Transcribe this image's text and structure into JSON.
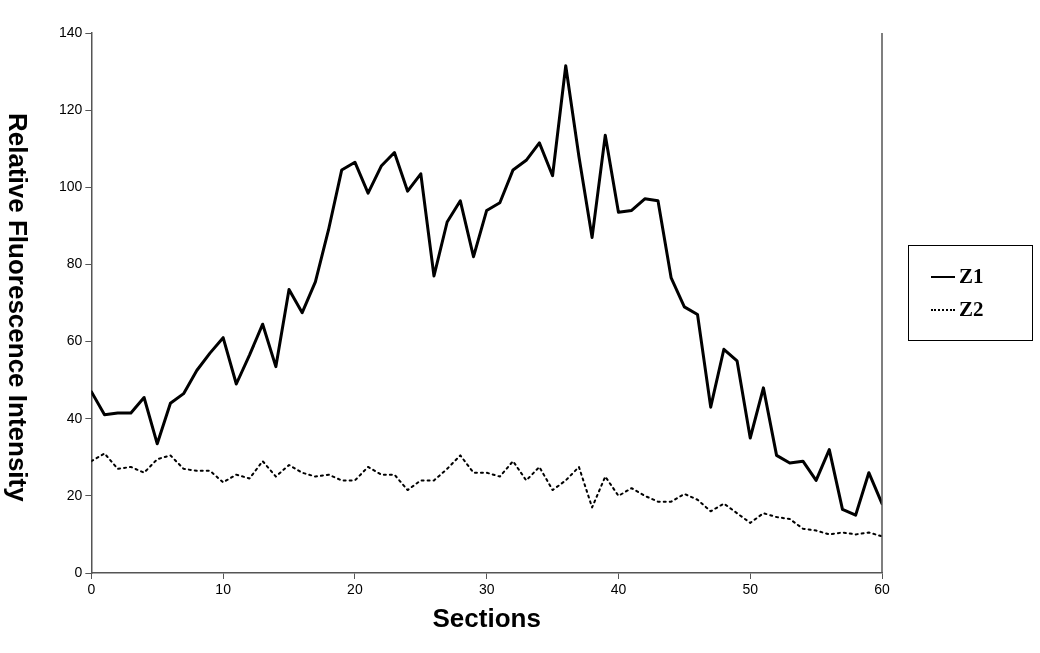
{
  "chart_data": {
    "type": "line",
    "xlabel": "Sections",
    "ylabel": "Relative Fluorescence Intensity",
    "x": [
      0,
      1,
      2,
      3,
      4,
      5,
      6,
      7,
      8,
      9,
      10,
      11,
      12,
      13,
      14,
      15,
      16,
      17,
      18,
      19,
      20,
      21,
      22,
      23,
      24,
      25,
      26,
      27,
      28,
      29,
      30,
      31,
      32,
      33,
      34,
      35,
      36,
      37,
      38,
      39,
      40,
      41,
      42,
      43,
      44,
      45,
      46,
      47,
      48,
      49,
      50,
      51,
      52,
      53,
      54,
      55,
      56,
      57,
      58,
      59,
      60
    ],
    "series": [
      {
        "name": "Z1",
        "color": "#000000",
        "line_style": "solid",
        "values": [
          47,
          41,
          41.5,
          41.5,
          45.5,
          33.5,
          44,
          46.5,
          52.5,
          57,
          61,
          49,
          56.5,
          64.5,
          53.5,
          73.5,
          67.5,
          75.5,
          89,
          104.5,
          106.5,
          98.5,
          105.5,
          109,
          99,
          103.5,
          77,
          91,
          96.5,
          82,
          94,
          96,
          104.5,
          107,
          111.5,
          103,
          131.5,
          108,
          87,
          113.5,
          93.5,
          94,
          97,
          96.5,
          76.5,
          69,
          67,
          43,
          58,
          55,
          35,
          48,
          30.5,
          28.5,
          29,
          24,
          32,
          16.5,
          15,
          26,
          18
        ]
      },
      {
        "name": "Z2",
        "color": "#000000",
        "line_style": "dotted",
        "values": [
          29,
          31,
          27,
          27.5,
          26,
          29.5,
          30.5,
          27,
          26.5,
          26.5,
          23.5,
          25.5,
          24.5,
          29,
          25,
          28,
          26,
          25,
          25.5,
          24,
          24,
          27.5,
          25.5,
          25.5,
          21.5,
          24,
          24,
          27,
          30.5,
          26,
          26,
          25,
          29,
          24,
          27.5,
          21.5,
          24,
          27.5,
          17,
          25,
          20,
          22,
          20,
          18.5,
          18.5,
          20.5,
          19,
          16,
          18,
          15.5,
          13,
          15.5,
          14.5,
          14,
          11.5,
          11,
          10,
          10.5,
          10,
          10.5,
          9.5
        ]
      }
    ],
    "xlim": [
      0,
      60
    ],
    "xticks": [
      0,
      10,
      20,
      30,
      40,
      50,
      60
    ],
    "ylim": [
      0,
      140
    ],
    "yticks": [
      0,
      20,
      40,
      60,
      80,
      100,
      120,
      140
    ],
    "grid": false,
    "legend": "right",
    "marker": "none"
  }
}
